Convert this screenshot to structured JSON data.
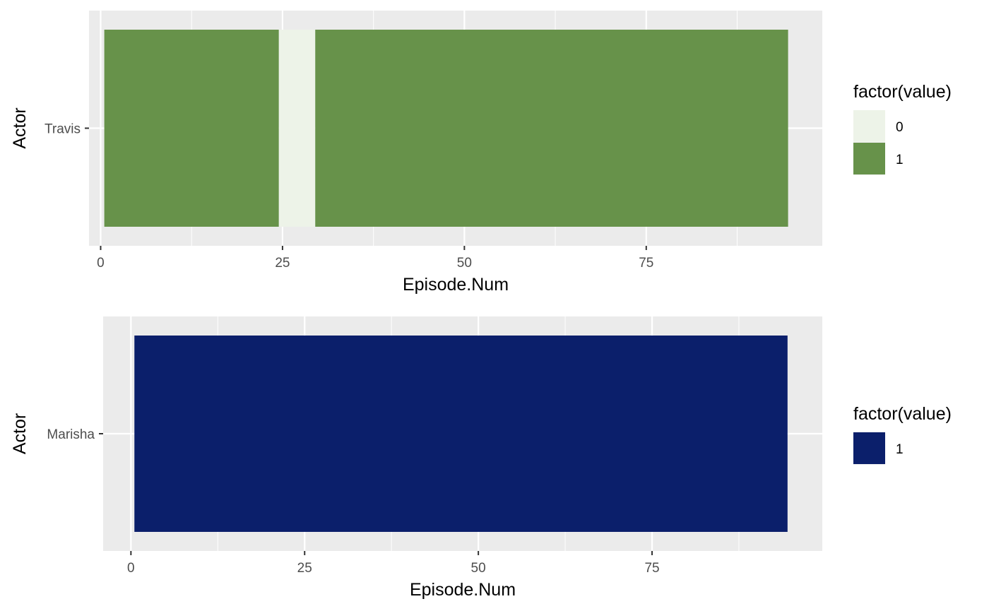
{
  "chart_data": [
    {
      "type": "bar",
      "orientation": "horizontal",
      "xlabel": "Episode.Num",
      "ylabel": "Actor",
      "xlim": [
        -1.6,
        99.2
      ],
      "x_ticks": [
        0,
        25,
        50,
        75
      ],
      "categories": [
        "Travis"
      ],
      "legend": {
        "title": "factor(value)",
        "entries": [
          {
            "label": "0",
            "color": "#EDF3E8"
          },
          {
            "label": "1",
            "color": "#67924A"
          }
        ]
      },
      "segments": [
        {
          "category": "Travis",
          "start": 0.5,
          "end": 24.5,
          "value": "1"
        },
        {
          "category": "Travis",
          "start": 24.5,
          "end": 29.5,
          "value": "0"
        },
        {
          "category": "Travis",
          "start": 29.5,
          "end": 94.5,
          "value": "1"
        }
      ],
      "grid": true,
      "legend_position": "right"
    },
    {
      "type": "bar",
      "orientation": "horizontal",
      "xlabel": "Episode.Num",
      "ylabel": "Actor",
      "xlim": [
        -4.0,
        99.5
      ],
      "x_ticks": [
        0,
        25,
        50,
        75
      ],
      "categories": [
        "Marisha"
      ],
      "legend": {
        "title": "factor(value)",
        "entries": [
          {
            "label": "1",
            "color": "#0B1F6B"
          }
        ]
      },
      "segments": [
        {
          "category": "Marisha",
          "start": 0.5,
          "end": 94.5,
          "value": "1"
        }
      ],
      "grid": true,
      "legend_position": "right"
    }
  ]
}
